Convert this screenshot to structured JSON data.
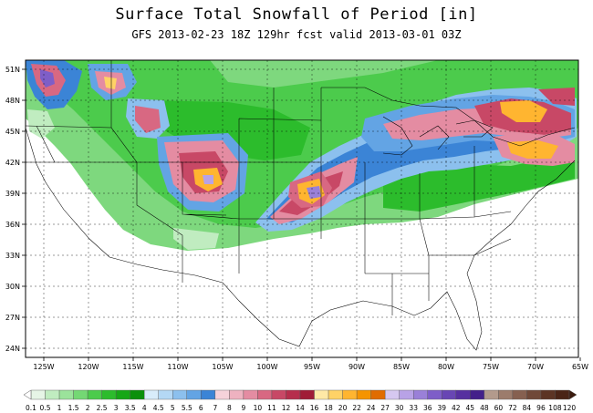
{
  "title": "Surface Total Snowfall of Period [in]",
  "subtitle": "GFS 2013-02-23 18Z 129hr fcst valid 2013-03-01 03Z",
  "lat_labels": [
    "51N",
    "48N",
    "45N",
    "42N",
    "39N",
    "36N",
    "33N",
    "30N",
    "27N",
    "24N"
  ],
  "lon_labels": [
    "125W",
    "120W",
    "115W",
    "110W",
    "105W",
    "100W",
    "95W",
    "90W",
    "85W",
    "80W",
    "75W",
    "70W",
    "65W"
  ],
  "colorbar": {
    "values": [
      "0.1",
      "0.5",
      "1",
      "1.5",
      "2",
      "2.5",
      "3",
      "3.5",
      "4",
      "4.5",
      "5",
      "5.5",
      "6",
      "7",
      "8",
      "9",
      "10",
      "11",
      "12",
      "14",
      "16",
      "18",
      "20",
      "22",
      "24",
      "27",
      "30",
      "33",
      "36",
      "39",
      "42",
      "45",
      "48",
      "60",
      "72",
      "84",
      "96",
      "108",
      "120"
    ],
    "colors": [
      "#e6f5e6",
      "#c0ecc0",
      "#9be39b",
      "#74d874",
      "#4ccb4c",
      "#2cbc2c",
      "#16a716",
      "#0b900b",
      "#d8ecfa",
      "#b4d8f5",
      "#8cc0ee",
      "#63a4e4",
      "#3b84d6",
      "#f6d2da",
      "#eeb2c0",
      "#e48ca2",
      "#d86882",
      "#c84866",
      "#b62e4c",
      "#a01c36",
      "#ffe9a6",
      "#ffd266",
      "#ffb530",
      "#f59400",
      "#e06c00",
      "#d6c8f0",
      "#b8a2e6",
      "#9a80d8",
      "#7e5ec8",
      "#6846b4",
      "#5630a0",
      "#44208a",
      "#b39a8c",
      "#9c7c6c",
      "#866050",
      "#704838",
      "#5c3424",
      "#4a2416"
    ]
  }
}
